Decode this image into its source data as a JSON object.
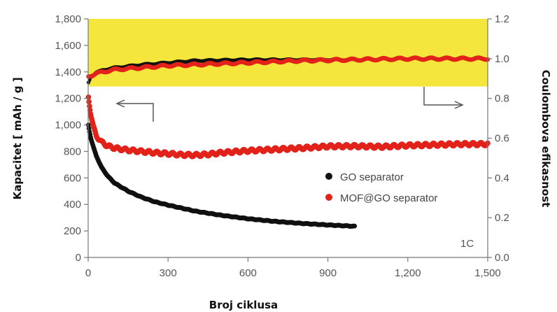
{
  "chart_data": {
    "type": "scatter",
    "title": "",
    "xlabel": "Broj ciklusa",
    "ylabel": "Kapacitet [ mAh / g ]",
    "ylabel_right": "Coulombova efikasnost",
    "xlim": [
      0,
      1500
    ],
    "ylim": [
      0,
      1800
    ],
    "ylim_right": [
      0,
      1.2
    ],
    "x_ticks": [
      "0",
      "300",
      "600",
      "900",
      "1,200",
      "1,500"
    ],
    "y_ticks": [
      "0",
      "200",
      "400",
      "600",
      "800",
      "1,000",
      "1,200",
      "1,400",
      "1,600",
      "1,800"
    ],
    "y_ticks_right": [
      "0.0",
      "0.2",
      "0.4",
      "0.6",
      "0.8",
      "1.0",
      "1.2"
    ],
    "highlight_band_right_axis": [
      0.86,
      1.2
    ],
    "annotation": "1C",
    "grid": false,
    "legend_position": "right",
    "colors": {
      "go": "#111111",
      "mof": "#e2231a",
      "band": "#f4e63c"
    },
    "series": [
      {
        "name": "GO separator",
        "axis": "left",
        "x": [
          1,
          5,
          10,
          20,
          30,
          50,
          75,
          100,
          150,
          200,
          250,
          300,
          400,
          500,
          600,
          700,
          800,
          900,
          1000
        ],
        "y": [
          1000,
          950,
          900,
          830,
          770,
          680,
          610,
          560,
          500,
          455,
          420,
          395,
          350,
          318,
          292,
          272,
          257,
          245,
          235
        ]
      },
      {
        "name": "MOF@GO separator",
        "axis": "left",
        "x": [
          1,
          5,
          10,
          20,
          30,
          50,
          75,
          100,
          150,
          200,
          250,
          300,
          350,
          400,
          450,
          500,
          600,
          700,
          800,
          900,
          1000,
          1100,
          1200,
          1300,
          1400,
          1500
        ],
        "y": [
          1210,
          1150,
          1080,
          980,
          920,
          870,
          840,
          825,
          810,
          800,
          790,
          783,
          775,
          772,
          778,
          790,
          805,
          815,
          825,
          838,
          840,
          835,
          845,
          850,
          855,
          855
        ]
      },
      {
        "name": "GO separator efficiency",
        "axis": "right",
        "x": [
          1,
          10,
          30,
          60,
          100,
          200,
          300,
          400,
          600,
          800,
          1000
        ],
        "y": [
          0.88,
          0.91,
          0.93,
          0.945,
          0.955,
          0.97,
          0.98,
          0.99,
          0.995,
          0.995,
          0.995
        ]
      },
      {
        "name": "MOF@GO separator efficiency",
        "axis": "right",
        "x": [
          1,
          10,
          30,
          60,
          100,
          200,
          300,
          400,
          500,
          600,
          800,
          1000,
          1200,
          1400,
          1500
        ],
        "y": [
          0.91,
          0.915,
          0.925,
          0.935,
          0.945,
          0.955,
          0.965,
          0.97,
          0.975,
          0.98,
          0.99,
          0.995,
          1.0,
          1.0,
          1.0
        ]
      }
    ]
  }
}
